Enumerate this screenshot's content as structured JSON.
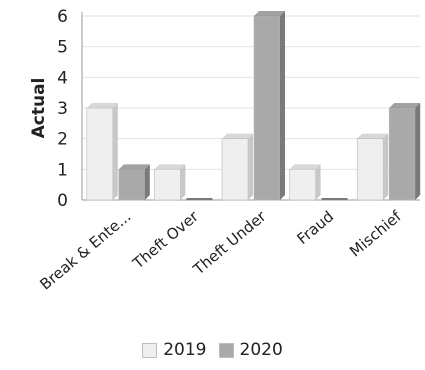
{
  "chart_data": {
    "type": "bar",
    "title": "",
    "xlabel": "",
    "ylabel": "Actual",
    "ylim": [
      0,
      6
    ],
    "yticks": [
      0,
      1,
      2,
      3,
      4,
      5,
      6
    ],
    "grid": true,
    "legend_position": "bottom",
    "categories": [
      "Break & Ente...",
      "Theft Over",
      "Theft Under",
      "Fraud",
      "Mischief"
    ],
    "series": [
      {
        "name": "2019",
        "values": [
          3,
          1,
          2,
          1,
          2
        ],
        "color": "#efefef",
        "side_color": "#c8c8c8"
      },
      {
        "name": "2020",
        "values": [
          1,
          0,
          6,
          0,
          3
        ],
        "color": "#a9a9a9",
        "side_color": "#7a7a7a"
      }
    ]
  }
}
